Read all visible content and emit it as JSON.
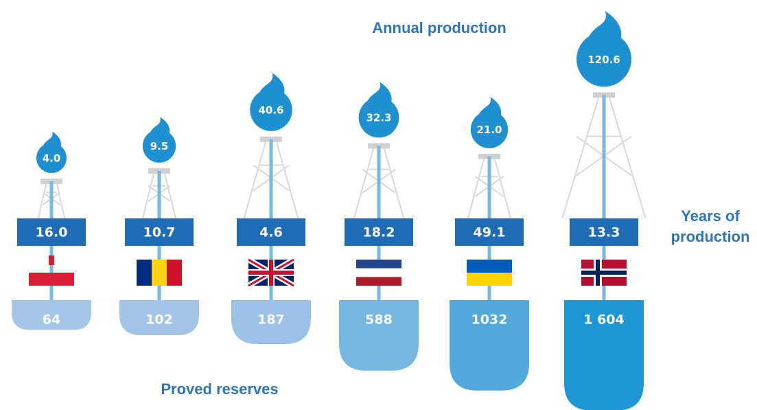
{
  "chart_data": {
    "type": "infographic",
    "annual_production": {
      "title": "Annual production",
      "values": [
        4.0,
        9.5,
        40.6,
        32.3,
        21.0,
        120.6
      ],
      "value_labels": [
        "4.0",
        "9.5",
        "40.6",
        "32.3",
        "21.0",
        "120.6"
      ]
    },
    "years_of_production": {
      "title": "Years of production",
      "values": [
        16.0,
        10.7,
        4.6,
        18.2,
        49.1,
        13.3
      ],
      "value_labels": [
        "16.0",
        "10.7",
        "4.6",
        "18.2",
        "49.1",
        "13.3"
      ]
    },
    "proved_reserves": {
      "title": "Proved reserves",
      "values": [
        64,
        102,
        187,
        588,
        1032,
        1604
      ],
      "value_labels": [
        "64",
        "102",
        "187",
        "588",
        "1032",
        "1 604"
      ]
    }
  }
}
